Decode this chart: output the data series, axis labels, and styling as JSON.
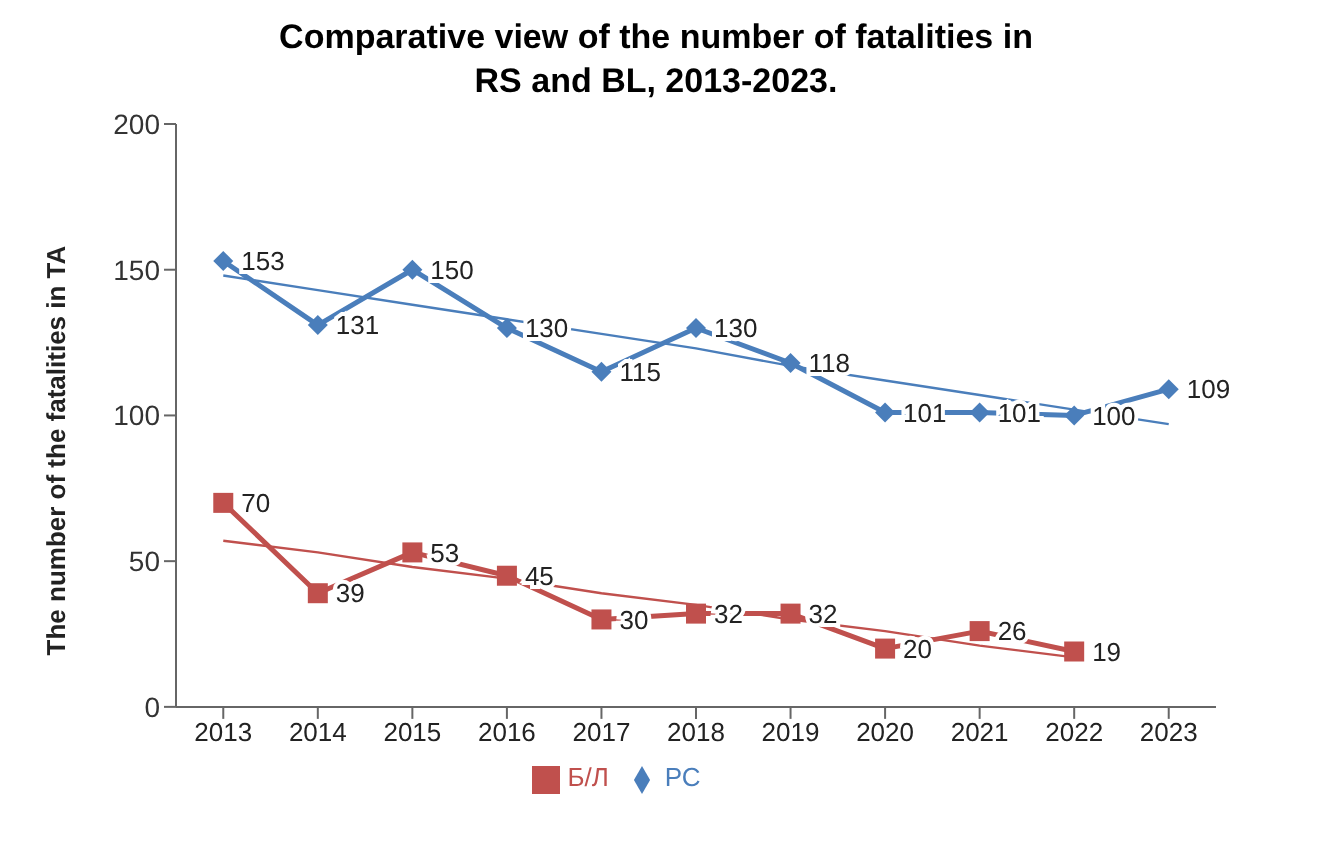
{
  "chart_data": {
    "type": "line",
    "title": "Comparative view of the number of fatalities in RS and BL, 2013-2023.",
    "ylabel": "The number of the fatalities in TA",
    "categories": [
      "2013",
      "2014",
      "2015",
      "2016",
      "2017",
      "2018",
      "2019",
      "2020",
      "2021",
      "2022",
      "2023"
    ],
    "series": [
      {
        "name": "РС",
        "color": "#4a7ebb",
        "marker": "diamond",
        "values": [
          153,
          131,
          150,
          130,
          115,
          130,
          118,
          101,
          101,
          100,
          109
        ],
        "value_labels": [
          "153",
          "131",
          "150",
          "130",
          "115",
          "130",
          "118",
          "101",
          "101",
          "100",
          "109"
        ]
      },
      {
        "name": "Б/Л",
        "color": "#c0504d",
        "marker": "square",
        "values": [
          70,
          39,
          53,
          45,
          30,
          32,
          32,
          20,
          26,
          19,
          null
        ],
        "value_labels": [
          "70",
          "39",
          "53",
          "45",
          "30",
          "32",
          "32",
          "20",
          "26",
          "19",
          null
        ]
      },
      {
        "type": "line",
        "color": "#4a7ebb",
        "marker": "none",
        "values": [
          148,
          143,
          138,
          133,
          128,
          123,
          117,
          112,
          107,
          102,
          97
        ]
      },
      {
        "type": "line",
        "color": "#c0504d",
        "marker": "none",
        "values": [
          57,
          53,
          48,
          44,
          39,
          35,
          30,
          26,
          21,
          17,
          null
        ]
      }
    ],
    "ylim": [
      0,
      200
    ],
    "yticks": [
      0,
      50,
      100,
      150,
      200
    ],
    "grid": false,
    "legend": "bottom"
  }
}
